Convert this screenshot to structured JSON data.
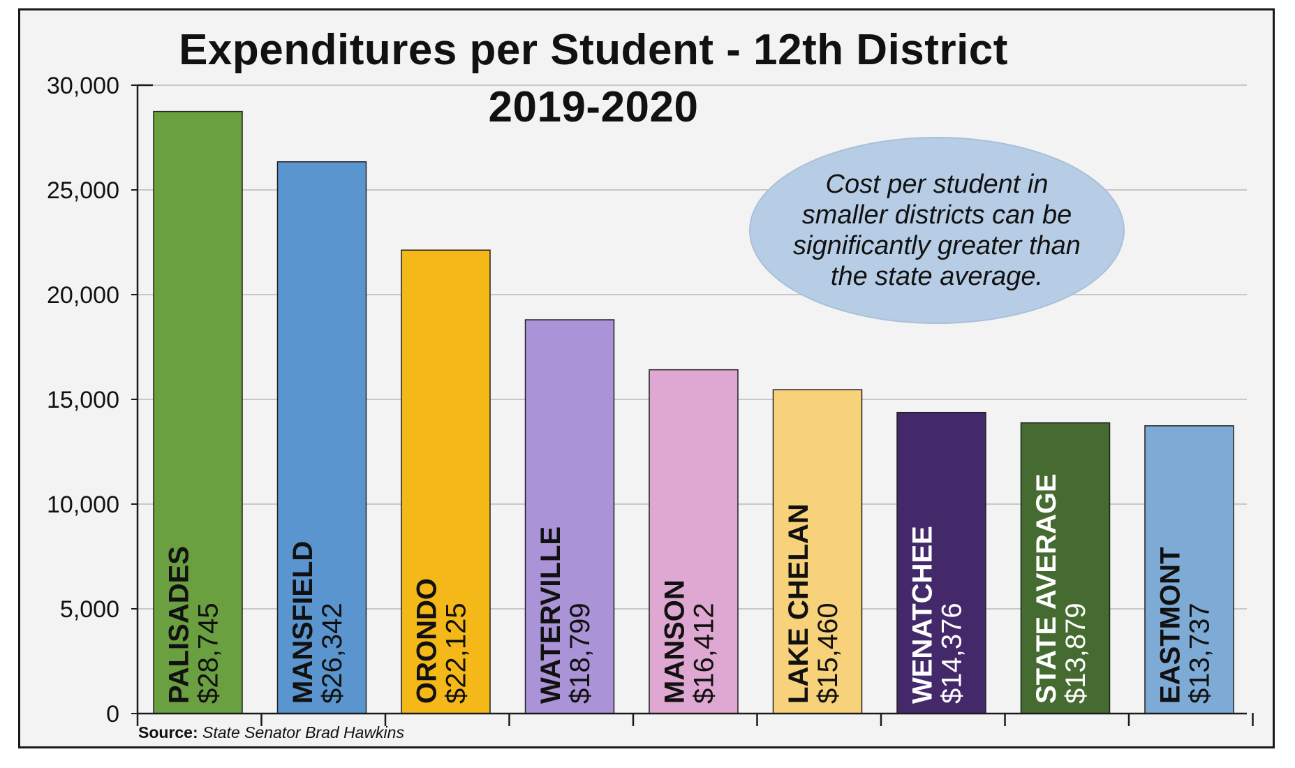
{
  "chart_data": {
    "type": "bar",
    "title": "Expenditures per Student - 12th District",
    "subtitle": "2019-2020",
    "categories": [
      "PALISADES",
      "MANSFIELD",
      "ORONDO",
      "WATERVILLE",
      "MANSON",
      "LAKE CHELAN",
      "WENATCHEE",
      "STATE AVERAGE",
      "EASTMONT"
    ],
    "values": [
      28745,
      26342,
      22125,
      18799,
      16412,
      15460,
      14376,
      13879,
      13737
    ],
    "value_labels": [
      "$28,745",
      "$26,342",
      "$22,125",
      "$18,799",
      "$16,412",
      "$15,460",
      "$14,376",
      "$13,879",
      "$13,737"
    ],
    "colors": [
      "#6aa040",
      "#5b95cf",
      "#f4b818",
      "#aa93d6",
      "#dfa8d2",
      "#f8d27a",
      "#43286a",
      "#456b30",
      "#7eabd6"
    ],
    "label_colors": [
      "#111111",
      "#111111",
      "#111111",
      "#111111",
      "#111111",
      "#111111",
      "#ffffff",
      "#ffffff",
      "#111111"
    ],
    "yticks": [
      0,
      5000,
      10000,
      15000,
      20000,
      25000,
      30000
    ],
    "ytick_labels": [
      "0",
      "5,000",
      "10,000",
      "15,000",
      "20,000",
      "25,000",
      "30,000"
    ],
    "ylim": [
      0,
      30000
    ],
    "xlabel": "",
    "ylabel": "",
    "grid": true,
    "annotation": "Cost per student in smaller districts can be significantly greater than the state average.",
    "source_label": "Source:",
    "source_value": "State Senator Brad Hawkins"
  },
  "theme": {
    "background": "#f3f3f3",
    "gridline": "#c8c8c8",
    "axis": "#1a1a1a",
    "callout_fill": "#b7cde6"
  }
}
